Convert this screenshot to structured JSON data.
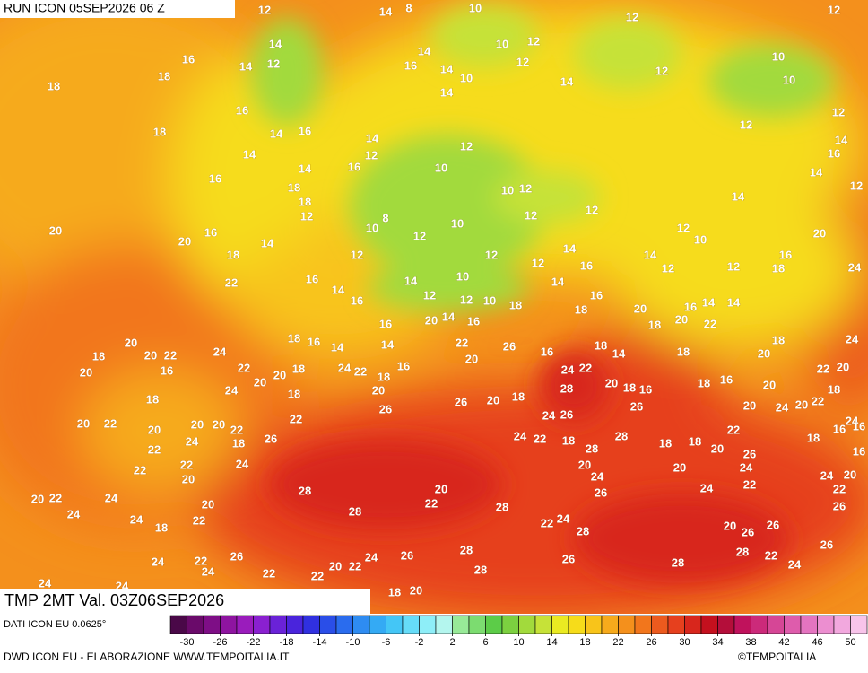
{
  "header": {
    "run": "RUN ICON 05SEP2026 06 Z",
    "field": "TMP 2MT Val. 03Z06SEP2026"
  },
  "temperature_labels": [
    12,
    14,
    8,
    10,
    12,
    12,
    10,
    12,
    14,
    14,
    16,
    14,
    12,
    16,
    14,
    12,
    10,
    12,
    10,
    18,
    18,
    14,
    10,
    14,
    16,
    12,
    16,
    18,
    14,
    14,
    12,
    12,
    14,
    16,
    14,
    12,
    16,
    10,
    14,
    14,
    16,
    18,
    10,
    12,
    12,
    18,
    14,
    12,
    8,
    10,
    12,
    12,
    10,
    12,
    20,
    16,
    12,
    14,
    10,
    20,
    20,
    18,
    12,
    12,
    14,
    14,
    12,
    16,
    24,
    12,
    12,
    16,
    16,
    14,
    10,
    14,
    18,
    22,
    14,
    16,
    12,
    16,
    12,
    10,
    14,
    14,
    14,
    18,
    20,
    16,
    16,
    18,
    20,
    20,
    16,
    18,
    22,
    18,
    16,
    14,
    14,
    22,
    26,
    16,
    18,
    14,
    18,
    24,
    20,
    18,
    20,
    22,
    18,
    20,
    24,
    22,
    18,
    24,
    22,
    18,
    16,
    20,
    24,
    22,
    20,
    16,
    20,
    20,
    20,
    18,
    16,
    18,
    16,
    20,
    22,
    20,
    18,
    24,
    20,
    28,
    18,
    18,
    20,
    26,
    18,
    20,
    22,
    20,
    24,
    26,
    24,
    26,
    26,
    22,
    20,
    22,
    20,
    20,
    20,
    22,
    24,
    22,
    16,
    16,
    24,
    22,
    18,
    28,
    26,
    24,
    18,
    18,
    18,
    18,
    20,
    26,
    22,
    28,
    16,
    22,
    24,
    20,
    20,
    24,
    24,
    20,
    22,
    20,
    24,
    22,
    24,
    22,
    28,
    20,
    26,
    20,
    22,
    24,
    20,
    22,
    28,
    26,
    24,
    24,
    22,
    28,
    24,
    22,
    18,
    20,
    26,
    26,
    28,
    28,
    26,
    26,
    26,
    24,
    28,
    24,
    26,
    24,
    22,
    28,
    22,
    22,
    22,
    20,
    22,
    24,
    28,
    20,
    18,
    24,
    24
  ],
  "colorbar": {
    "range": [
      -32,
      52
    ],
    "colors": [
      "#4a0848",
      "#6a0a6a",
      "#7e0e86",
      "#8e14a0",
      "#9a1cbc",
      "#8a20d0",
      "#6a22d8",
      "#4a24dc",
      "#3030e0",
      "#2a4ee8",
      "#2a6cee",
      "#2e8cf2",
      "#34aaf4",
      "#44c6f6",
      "#66dcf8",
      "#8eeef8",
      "#b4f6ee",
      "#98ea98",
      "#7cdc70",
      "#5ccc48",
      "#7cd040",
      "#a2da3c",
      "#c6e238",
      "#eaea22",
      "#f6dc1a",
      "#f8c41a",
      "#f6aa1c",
      "#f4901c",
      "#f2761c",
      "#ec5a1e",
      "#e6401e",
      "#d8261c",
      "#c4101e",
      "#b40e3a",
      "#c0125c",
      "#cc2a7a",
      "#d64696",
      "#de5cac",
      "#e474c0",
      "#ec8ed0",
      "#f2a8de",
      "#f8c4ea"
    ],
    "ticks": [
      -30,
      -26,
      -22,
      -18,
      -14,
      -10,
      -6,
      -2,
      2,
      6,
      10,
      14,
      18,
      22,
      26,
      30,
      34,
      38,
      42,
      46,
      50
    ]
  },
  "footer": {
    "source": "DATI ICON EU 0.0625°",
    "credit": "DWD ICON EU - ELABORAZIONE WWW.TEMPOITALIA.IT",
    "copyright": "©TEMPOITALIA"
  }
}
